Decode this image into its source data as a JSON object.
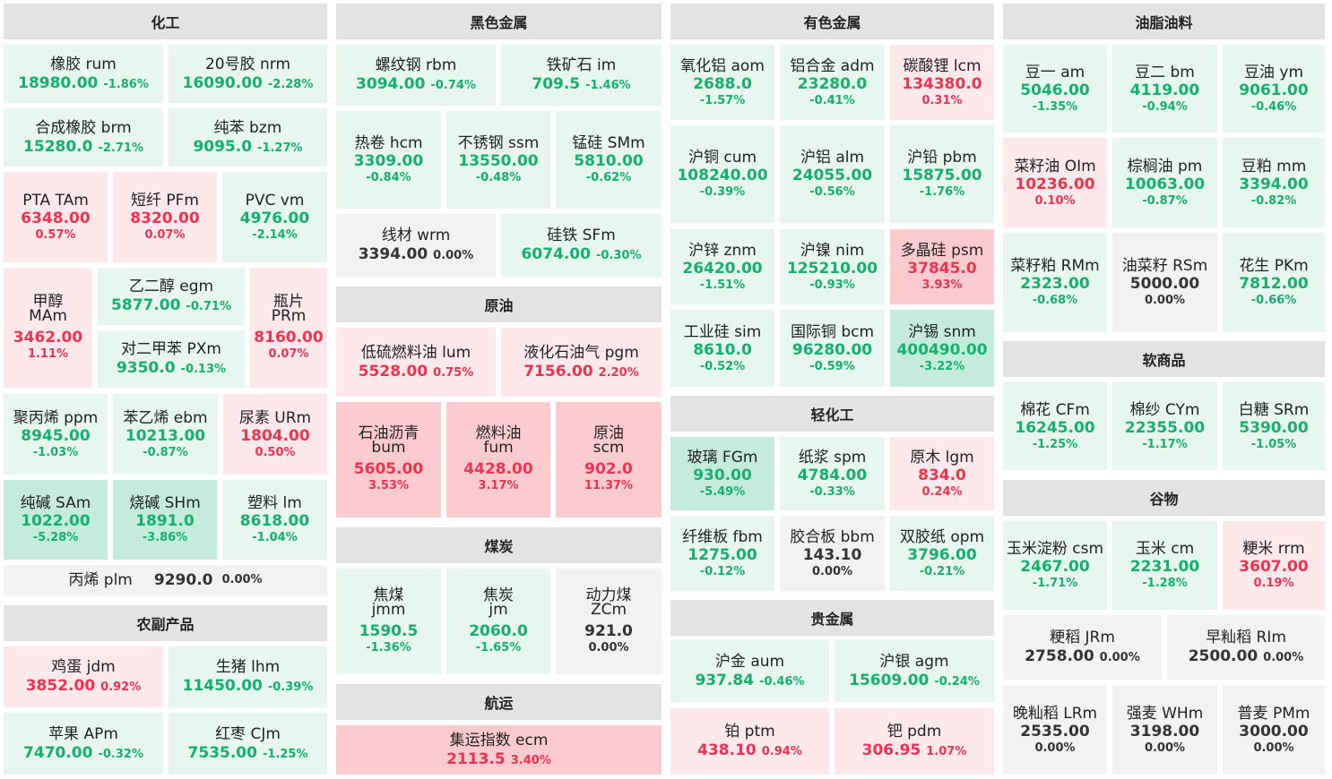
{
  "sections": [
    {
      "id": "chem",
      "title": "化工"
    },
    {
      "id": "ferrous",
      "title": "黑色金属"
    },
    {
      "id": "nonferrous",
      "title": "有色金属"
    },
    {
      "id": "oils",
      "title": "油脂油料"
    },
    {
      "id": "crude",
      "title": "原油"
    },
    {
      "id": "coal",
      "title": "煤炭"
    },
    {
      "id": "shipping",
      "title": "航运"
    },
    {
      "id": "light",
      "title": "轻化工"
    },
    {
      "id": "precious",
      "title": "贵金属"
    },
    {
      "id": "soft",
      "title": "软商品"
    },
    {
      "id": "grain",
      "title": "谷物"
    },
    {
      "id": "agri",
      "title": "农副产品"
    }
  ],
  "tiles": [
    {
      "name": "橡胶  rum",
      "price": "18980.00",
      "change": "-1.86%",
      "status": "down"
    },
    {
      "name": "20号胶  nrm",
      "price": "16090.00",
      "change": "-2.28%",
      "status": "down"
    },
    {
      "name": "合成橡胶  brm",
      "price": "15280.0",
      "change": "-2.71%",
      "status": "down"
    },
    {
      "name": "纯苯  bzm",
      "price": "9095.0",
      "change": "-1.27%",
      "status": "down"
    },
    {
      "name": "PTA  TAm",
      "price": "6348.00",
      "change": "0.57%",
      "status": "up"
    },
    {
      "name": "短纤  PFm",
      "price": "8320.00",
      "change": "0.07%",
      "status": "up"
    },
    {
      "name": "PVC  vm",
      "price": "4976.00",
      "change": "-2.14%",
      "status": "down"
    },
    {
      "cname": "甲醇",
      "code": "MAm",
      "price": "3462.00",
      "change": "1.11%",
      "status": "up"
    },
    {
      "name": "乙二醇  egm",
      "price": "5877.00",
      "change": "-0.71%",
      "status": "down"
    },
    {
      "cname": "瓶片",
      "code": "PRm",
      "price": "8160.00",
      "change": "0.07%",
      "status": "up"
    },
    {
      "name": "对二甲苯  PXm",
      "price": "9350.0",
      "change": "-0.13%",
      "status": "down"
    },
    {
      "name": "聚丙烯  ppm",
      "price": "8945.00",
      "change": "-1.03%",
      "status": "down"
    },
    {
      "name": "苯乙烯  ebm",
      "price": "10213.00",
      "change": "-0.87%",
      "status": "down"
    },
    {
      "name": "尿素  URm",
      "price": "1804.00",
      "change": "0.50%",
      "status": "up"
    },
    {
      "name": "纯碱  SAm",
      "price": "1022.00",
      "change": "-5.28%",
      "status": "down"
    },
    {
      "name": "烧碱  SHm",
      "price": "1891.0",
      "change": "-3.86%",
      "status": "down"
    },
    {
      "name": "塑料  lm",
      "price": "8618.00",
      "change": "-1.04%",
      "status": "down"
    },
    {
      "name": "丙烯  plm",
      "price": "9290.0",
      "change": "0.00%",
      "status": "flat"
    },
    {
      "name": "鸡蛋  jdm",
      "price": "3852.00",
      "change": "0.92%",
      "status": "up"
    },
    {
      "name": "生猪  lhm",
      "price": "11450.00",
      "change": "-0.39%",
      "status": "down"
    },
    {
      "name": "苹果  APm",
      "price": "7470.00",
      "change": "-0.32%",
      "status": "down"
    },
    {
      "name": "红枣  CJm",
      "price": "7535.00",
      "change": "-1.25%",
      "status": "down"
    },
    {
      "name": "螺纹钢  rbm",
      "price": "3094.00",
      "change": "-0.74%",
      "status": "down"
    },
    {
      "name": "铁矿石  im",
      "price": "709.5",
      "change": "-1.46%",
      "status": "down"
    },
    {
      "name": "热卷  hcm",
      "price": "3309.00",
      "change": "-0.84%",
      "status": "down"
    },
    {
      "name": "不锈钢  ssm",
      "price": "13550.00",
      "change": "-0.48%",
      "status": "down"
    },
    {
      "name": "锰硅  SMm",
      "price": "5810.00",
      "change": "-0.62%",
      "status": "down"
    },
    {
      "name": "线材  wrm",
      "price": "3394.00",
      "change": "0.00%",
      "status": "flat"
    },
    {
      "name": "硅铁  SFm",
      "price": "6074.00",
      "change": "-0.30%",
      "status": "down"
    },
    {
      "name": "低硫燃料油  lum",
      "price": "5528.00",
      "change": "0.75%",
      "status": "up"
    },
    {
      "name": "液化石油气  pgm",
      "price": "7156.00",
      "change": "2.20%",
      "status": "up"
    },
    {
      "cname": "石油沥青",
      "code": "bum",
      "price": "5605.00",
      "change": "3.53%",
      "status": "up"
    },
    {
      "cname": "燃料油",
      "code": "fum",
      "price": "4428.00",
      "change": "3.17%",
      "status": "up"
    },
    {
      "cname": "原油",
      "code": "scm",
      "price": "902.0",
      "change": "11.37%",
      "status": "up"
    },
    {
      "cname": "焦煤",
      "code": "jmm",
      "price": "1590.5",
      "change": "-1.36%",
      "status": "down"
    },
    {
      "cname": "焦炭",
      "code": "jm",
      "price": "2060.0",
      "change": "-1.65%",
      "status": "down"
    },
    {
      "cname": "动力煤",
      "code": "ZCm",
      "price": "921.0",
      "change": "0.00%",
      "status": "flat"
    },
    {
      "name": "集运指数  ecm",
      "price": "2113.5",
      "change": "3.40%",
      "status": "up"
    },
    {
      "name": "氧化铝  aom",
      "price": "2688.0",
      "change": "-1.57%",
      "status": "down"
    },
    {
      "name": "铝合金  adm",
      "price": "23280.0",
      "change": "-0.41%",
      "status": "down"
    },
    {
      "name": "碳酸锂  lcm",
      "price": "134380.0",
      "change": "0.31%",
      "status": "up"
    },
    {
      "name": "沪铜  cum",
      "price": "108240.00",
      "change": "-0.39%",
      "status": "down"
    },
    {
      "name": "沪铝  alm",
      "price": "24055.00",
      "change": "-0.56%",
      "status": "down"
    },
    {
      "name": "沪铅  pbm",
      "price": "15875.00",
      "change": "-1.76%",
      "status": "down"
    },
    {
      "name": "沪锌  znm",
      "price": "26420.00",
      "change": "-1.51%",
      "status": "down"
    },
    {
      "name": "沪镍  nim",
      "price": "125210.00",
      "change": "-0.93%",
      "status": "down"
    },
    {
      "name": "多晶硅  psm",
      "price": "37845.0",
      "change": "3.93%",
      "status": "up"
    },
    {
      "name": "工业硅  sim",
      "price": "8610.0",
      "change": "-0.52%",
      "status": "down"
    },
    {
      "name": "国际铜  bcm",
      "price": "96280.00",
      "change": "-0.59%",
      "status": "down"
    },
    {
      "name": "沪锡  snm",
      "price": "400490.00",
      "change": "-3.22%",
      "status": "down"
    },
    {
      "name": "玻璃  FGm",
      "price": "930.00",
      "change": "-5.49%",
      "status": "down"
    },
    {
      "name": "纸浆  spm",
      "price": "4784.00",
      "change": "-0.33%",
      "status": "down"
    },
    {
      "name": "原木  lgm",
      "price": "834.0",
      "change": "0.24%",
      "status": "up"
    },
    {
      "name": "纤维板  fbm",
      "price": "1275.00",
      "change": "-0.12%",
      "status": "down"
    },
    {
      "name": "胶合板  bbm",
      "price": "143.10",
      "change": "0.00%",
      "status": "flat"
    },
    {
      "name": "双胶纸  opm",
      "price": "3796.00",
      "change": "-0.21%",
      "status": "down"
    },
    {
      "name": "沪金  aum",
      "price": "937.84",
      "change": "-0.46%",
      "status": "down"
    },
    {
      "name": "沪银  agm",
      "price": "15609.00",
      "change": "-0.24%",
      "status": "down"
    },
    {
      "name": "铂  ptm",
      "price": "438.10",
      "change": "0.94%",
      "status": "up"
    },
    {
      "name": "钯  pdm",
      "price": "306.95",
      "change": "1.07%",
      "status": "up"
    },
    {
      "name": "豆一  am",
      "price": "5046.00",
      "change": "-1.35%",
      "status": "down"
    },
    {
      "name": "豆二  bm",
      "price": "4119.00",
      "change": "-0.94%",
      "status": "down"
    },
    {
      "name": "豆油  ym",
      "price": "9061.00",
      "change": "-0.46%",
      "status": "down"
    },
    {
      "name": "菜籽油  OIm",
      "price": "10236.00",
      "change": "0.10%",
      "status": "up"
    },
    {
      "name": "棕榈油  pm",
      "price": "10063.00",
      "change": "-0.87%",
      "status": "down"
    },
    {
      "name": "豆粕  mm",
      "price": "3394.00",
      "change": "-0.82%",
      "status": "down"
    },
    {
      "name": "菜籽粕  RMm",
      "price": "2323.00",
      "change": "-0.68%",
      "status": "down"
    },
    {
      "name": "油菜籽  RSm",
      "price": "5000.00",
      "change": "0.00%",
      "status": "flat"
    },
    {
      "name": "花生  PKm",
      "price": "7812.00",
      "change": "-0.66%",
      "status": "down"
    },
    {
      "name": "棉花  CFm",
      "price": "16245.00",
      "change": "-1.25%",
      "status": "down"
    },
    {
      "name": "棉纱  CYm",
      "price": "22355.00",
      "change": "-1.17%",
      "status": "down"
    },
    {
      "name": "白糖  SRm",
      "price": "5390.00",
      "change": "-1.05%",
      "status": "down"
    },
    {
      "name": "玉米淀粉  csm",
      "price": "2467.00",
      "change": "-1.71%",
      "status": "down"
    },
    {
      "name": "玉米  cm",
      "price": "2231.00",
      "change": "-1.28%",
      "status": "down"
    },
    {
      "name": "粳米  rrm",
      "price": "3607.00",
      "change": "0.19%",
      "status": "up"
    },
    {
      "name": "粳稻  JRm",
      "price": "2758.00",
      "change": "0.00%",
      "status": "flat"
    },
    {
      "name": "早籼稻  RIm",
      "price": "2500.00",
      "change": "0.00%",
      "status": "flat"
    },
    {
      "name": "晚籼稻  LRm",
      "price": "2535.00",
      "change": "0.00%",
      "status": "flat"
    },
    {
      "name": "强麦  WHm",
      "price": "3198.00",
      "change": "0.00%",
      "status": "flat"
    },
    {
      "name": "普麦  PMm",
      "price": "3000.00",
      "change": "0.00%",
      "status": "flat"
    }
  ]
}
